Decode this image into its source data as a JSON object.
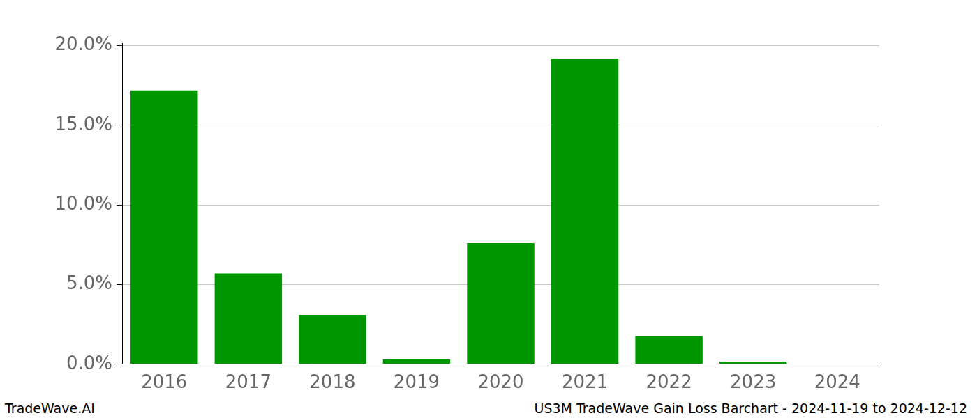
{
  "chart_data": {
    "type": "bar",
    "title": "US3M TradeWave Gain Loss Barchart - 2024-11-19 to 2024-12-12",
    "footer": "TradeWave.AI",
    "categories": [
      "2016",
      "2017",
      "2018",
      "2019",
      "2020",
      "2021",
      "2022",
      "2023",
      "2024"
    ],
    "values": [
      17.2,
      5.7,
      3.1,
      0.3,
      7.6,
      19.2,
      1.75,
      0.15,
      0
    ],
    "color": "#009600",
    "ylim": [
      0,
      20.16
    ],
    "yticks": [
      {
        "value": 0,
        "label": "0.0%"
      },
      {
        "value": 5,
        "label": "5.0%"
      },
      {
        "value": 10,
        "label": "10.0%"
      },
      {
        "value": 15,
        "label": "15.0%"
      },
      {
        "value": 20,
        "label": "20.0%"
      }
    ],
    "grid": true
  }
}
